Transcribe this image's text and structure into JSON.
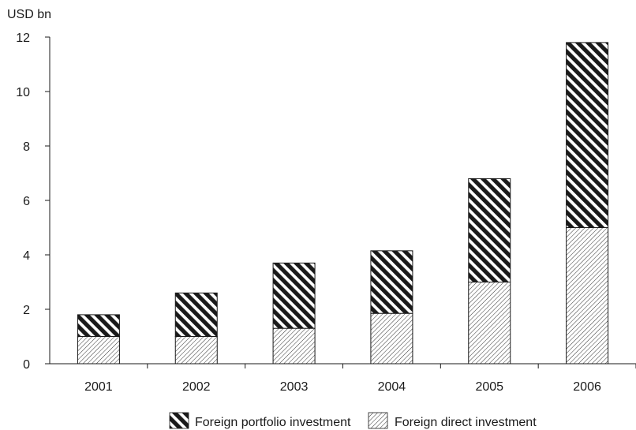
{
  "chart_data": {
    "type": "bar",
    "stacked": true,
    "unit_label": "USD bn",
    "categories": [
      "2001",
      "2002",
      "2003",
      "2004",
      "2005",
      "2006"
    ],
    "series": [
      {
        "name": "Foreign direct investment",
        "values": [
          1.0,
          1.0,
          1.3,
          1.85,
          3.0,
          5.0
        ],
        "pattern": "fine-diagonal-hatch"
      },
      {
        "name": "Foreign portfolio investment",
        "values": [
          0.8,
          1.6,
          2.4,
          2.3,
          3.8,
          6.8
        ],
        "pattern": "bold-diagonal-stripes"
      }
    ],
    "ylim": [
      0,
      12
    ],
    "yticks": [
      "0",
      "2",
      "4",
      "6",
      "8",
      "10",
      "12"
    ],
    "legend": {
      "position": "bottom",
      "items": [
        "Foreign portfolio investment",
        "Foreign direct investment"
      ]
    },
    "grid": false,
    "colors": {
      "ink": "#1a1a1a",
      "background": "#ffffff"
    }
  }
}
